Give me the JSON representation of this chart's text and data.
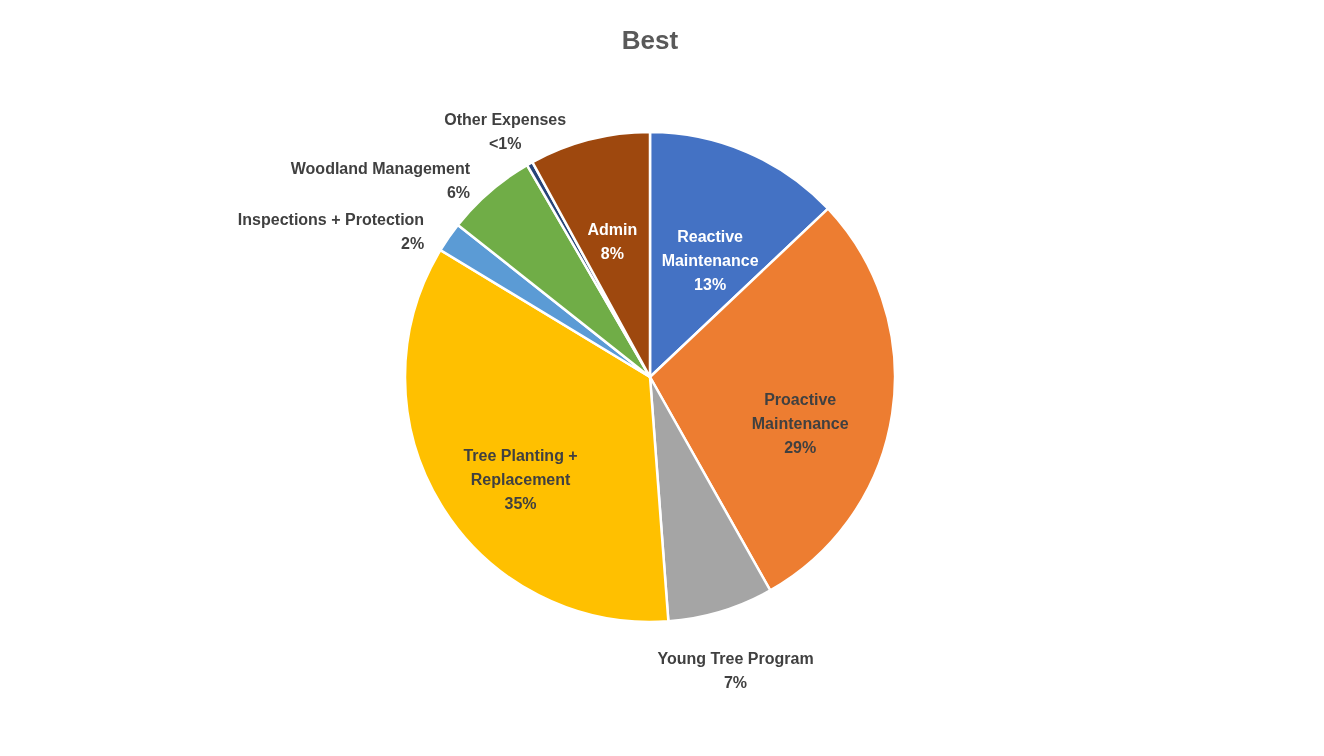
{
  "chart_data": {
    "type": "pie",
    "title": "Best",
    "categories": [
      "Reactive Maintenance",
      "Proactive Maintenance",
      "Young Tree Program",
      "Tree Planting + Replacement",
      "Inspections + Protection",
      "Woodland Management",
      "Other Expenses",
      "Admin"
    ],
    "values": [
      13,
      29,
      7,
      35,
      2,
      6,
      0.4,
      8
    ],
    "value_labels": [
      "13%",
      "29%",
      "7%",
      "35%",
      "2%",
      "6%",
      "<1%",
      "8%"
    ],
    "colors": [
      "#4472c4",
      "#ed7d31",
      "#a5a5a5",
      "#ffc000",
      "#5b9bd5",
      "#70ad47",
      "#264478",
      "#9e480e"
    ],
    "legend": false
  }
}
